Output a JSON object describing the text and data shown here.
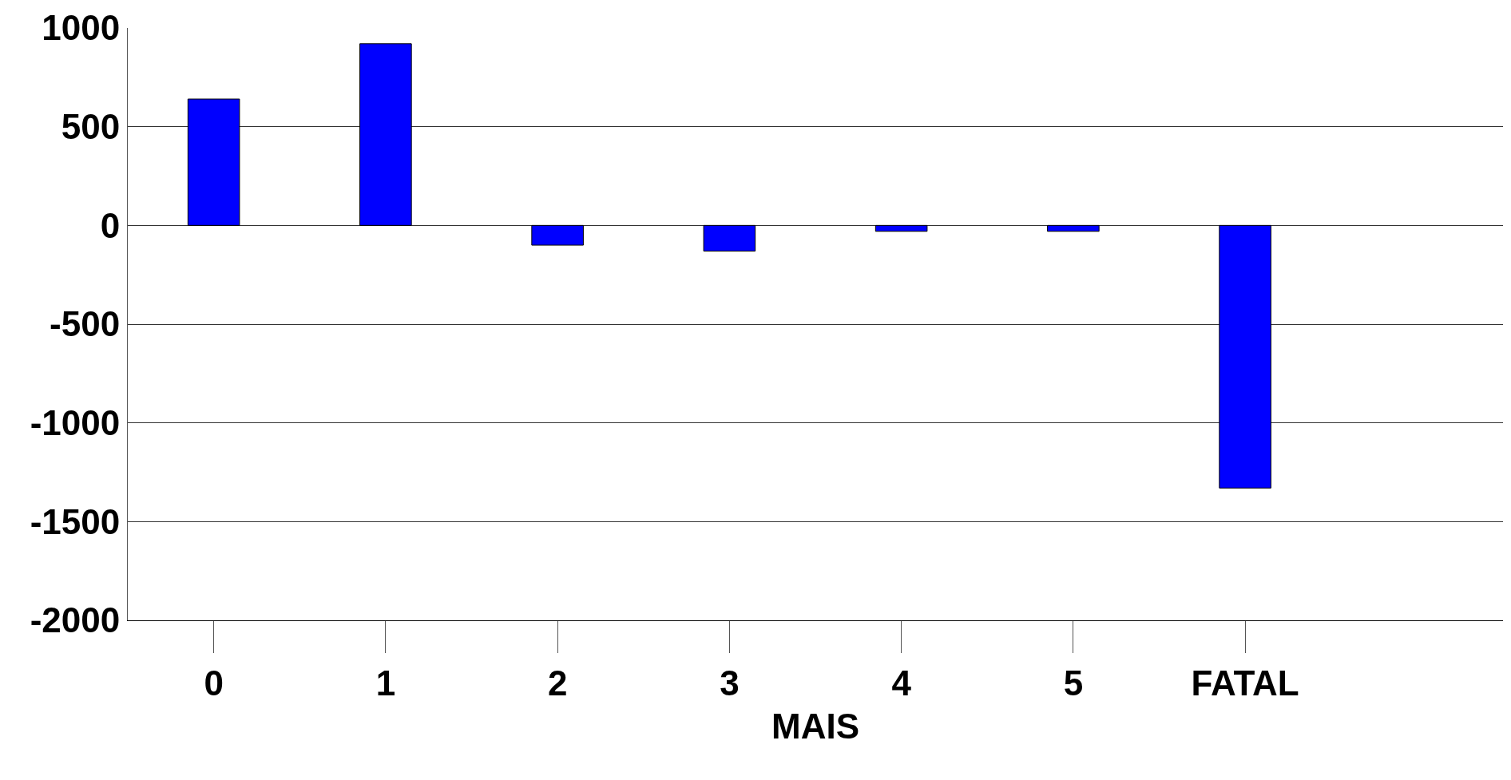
{
  "chart_data": {
    "type": "bar",
    "xlabel": "MAIS",
    "categories": [
      "0",
      "1",
      "2",
      "3",
      "4",
      "5",
      "FATAL",
      null
    ],
    "values": [
      640,
      920,
      -100,
      -130,
      -30,
      -30,
      -1330,
      null
    ],
    "color": "#0000ff",
    "ylim": [
      -2000,
      1000
    ],
    "yticks": [
      -2000,
      -1500,
      -1000,
      -500,
      0,
      500,
      1000
    ],
    "grid": "y"
  }
}
